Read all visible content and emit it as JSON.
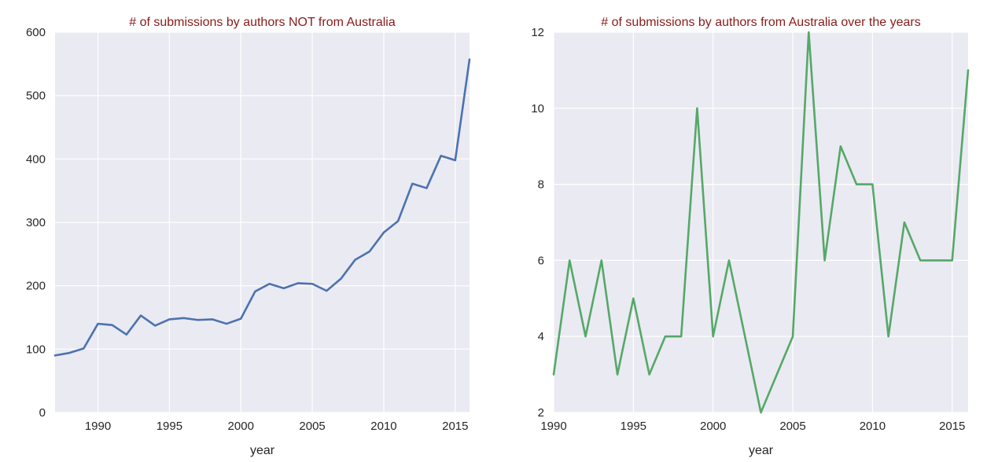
{
  "chart_data": [
    {
      "type": "line",
      "title": "# of submissions by authors NOT from Australia",
      "title_color": "#8B1A1A",
      "xlabel": "year",
      "ylabel": "",
      "xlim": [
        1987,
        2016
      ],
      "ylim": [
        0,
        600
      ],
      "xticks": [
        1990,
        1995,
        2000,
        2005,
        2010,
        2015
      ],
      "yticks": [
        0,
        100,
        200,
        300,
        400,
        500,
        600
      ],
      "grid": true,
      "series": [
        {
          "color": "#4C72B0",
          "x": [
            1987,
            1988,
            1989,
            1990,
            1991,
            1992,
            1993,
            1994,
            1995,
            1996,
            1997,
            1998,
            1999,
            2000,
            2001,
            2002,
            2003,
            2004,
            2005,
            2006,
            2007,
            2008,
            2009,
            2010,
            2011,
            2012,
            2013,
            2014,
            2015,
            2016
          ],
          "y": [
            90,
            94,
            101,
            140,
            138,
            123,
            153,
            137,
            147,
            149,
            146,
            147,
            140,
            148,
            191,
            203,
            196,
            204,
            203,
            192,
            211,
            241,
            254,
            284,
            302,
            361,
            354,
            405,
            398,
            557
          ]
        }
      ]
    },
    {
      "type": "line",
      "title": "# of submissions by authors from Australia over the years",
      "title_color": "#8B1A1A",
      "xlabel": "year",
      "ylabel": "",
      "xlim": [
        1990,
        2016
      ],
      "ylim": [
        2,
        12
      ],
      "xticks": [
        1990,
        1995,
        2000,
        2005,
        2010,
        2015
      ],
      "yticks": [
        2,
        4,
        6,
        8,
        10,
        12
      ],
      "grid": true,
      "series": [
        {
          "color": "#55A868",
          "x": [
            1990,
            1991,
            1992,
            1993,
            1994,
            1995,
            1996,
            1997,
            1998,
            1999,
            2000,
            2001,
            2003,
            2005,
            2006,
            2007,
            2008,
            2009,
            2010,
            2011,
            2012,
            2013,
            2014,
            2015,
            2016
          ],
          "y": [
            3,
            6,
            4,
            6,
            3,
            5,
            3,
            4,
            4,
            10,
            4,
            6,
            2,
            4,
            12,
            6,
            9,
            8,
            8,
            4,
            7,
            6,
            6,
            6,
            11
          ]
        }
      ]
    }
  ]
}
